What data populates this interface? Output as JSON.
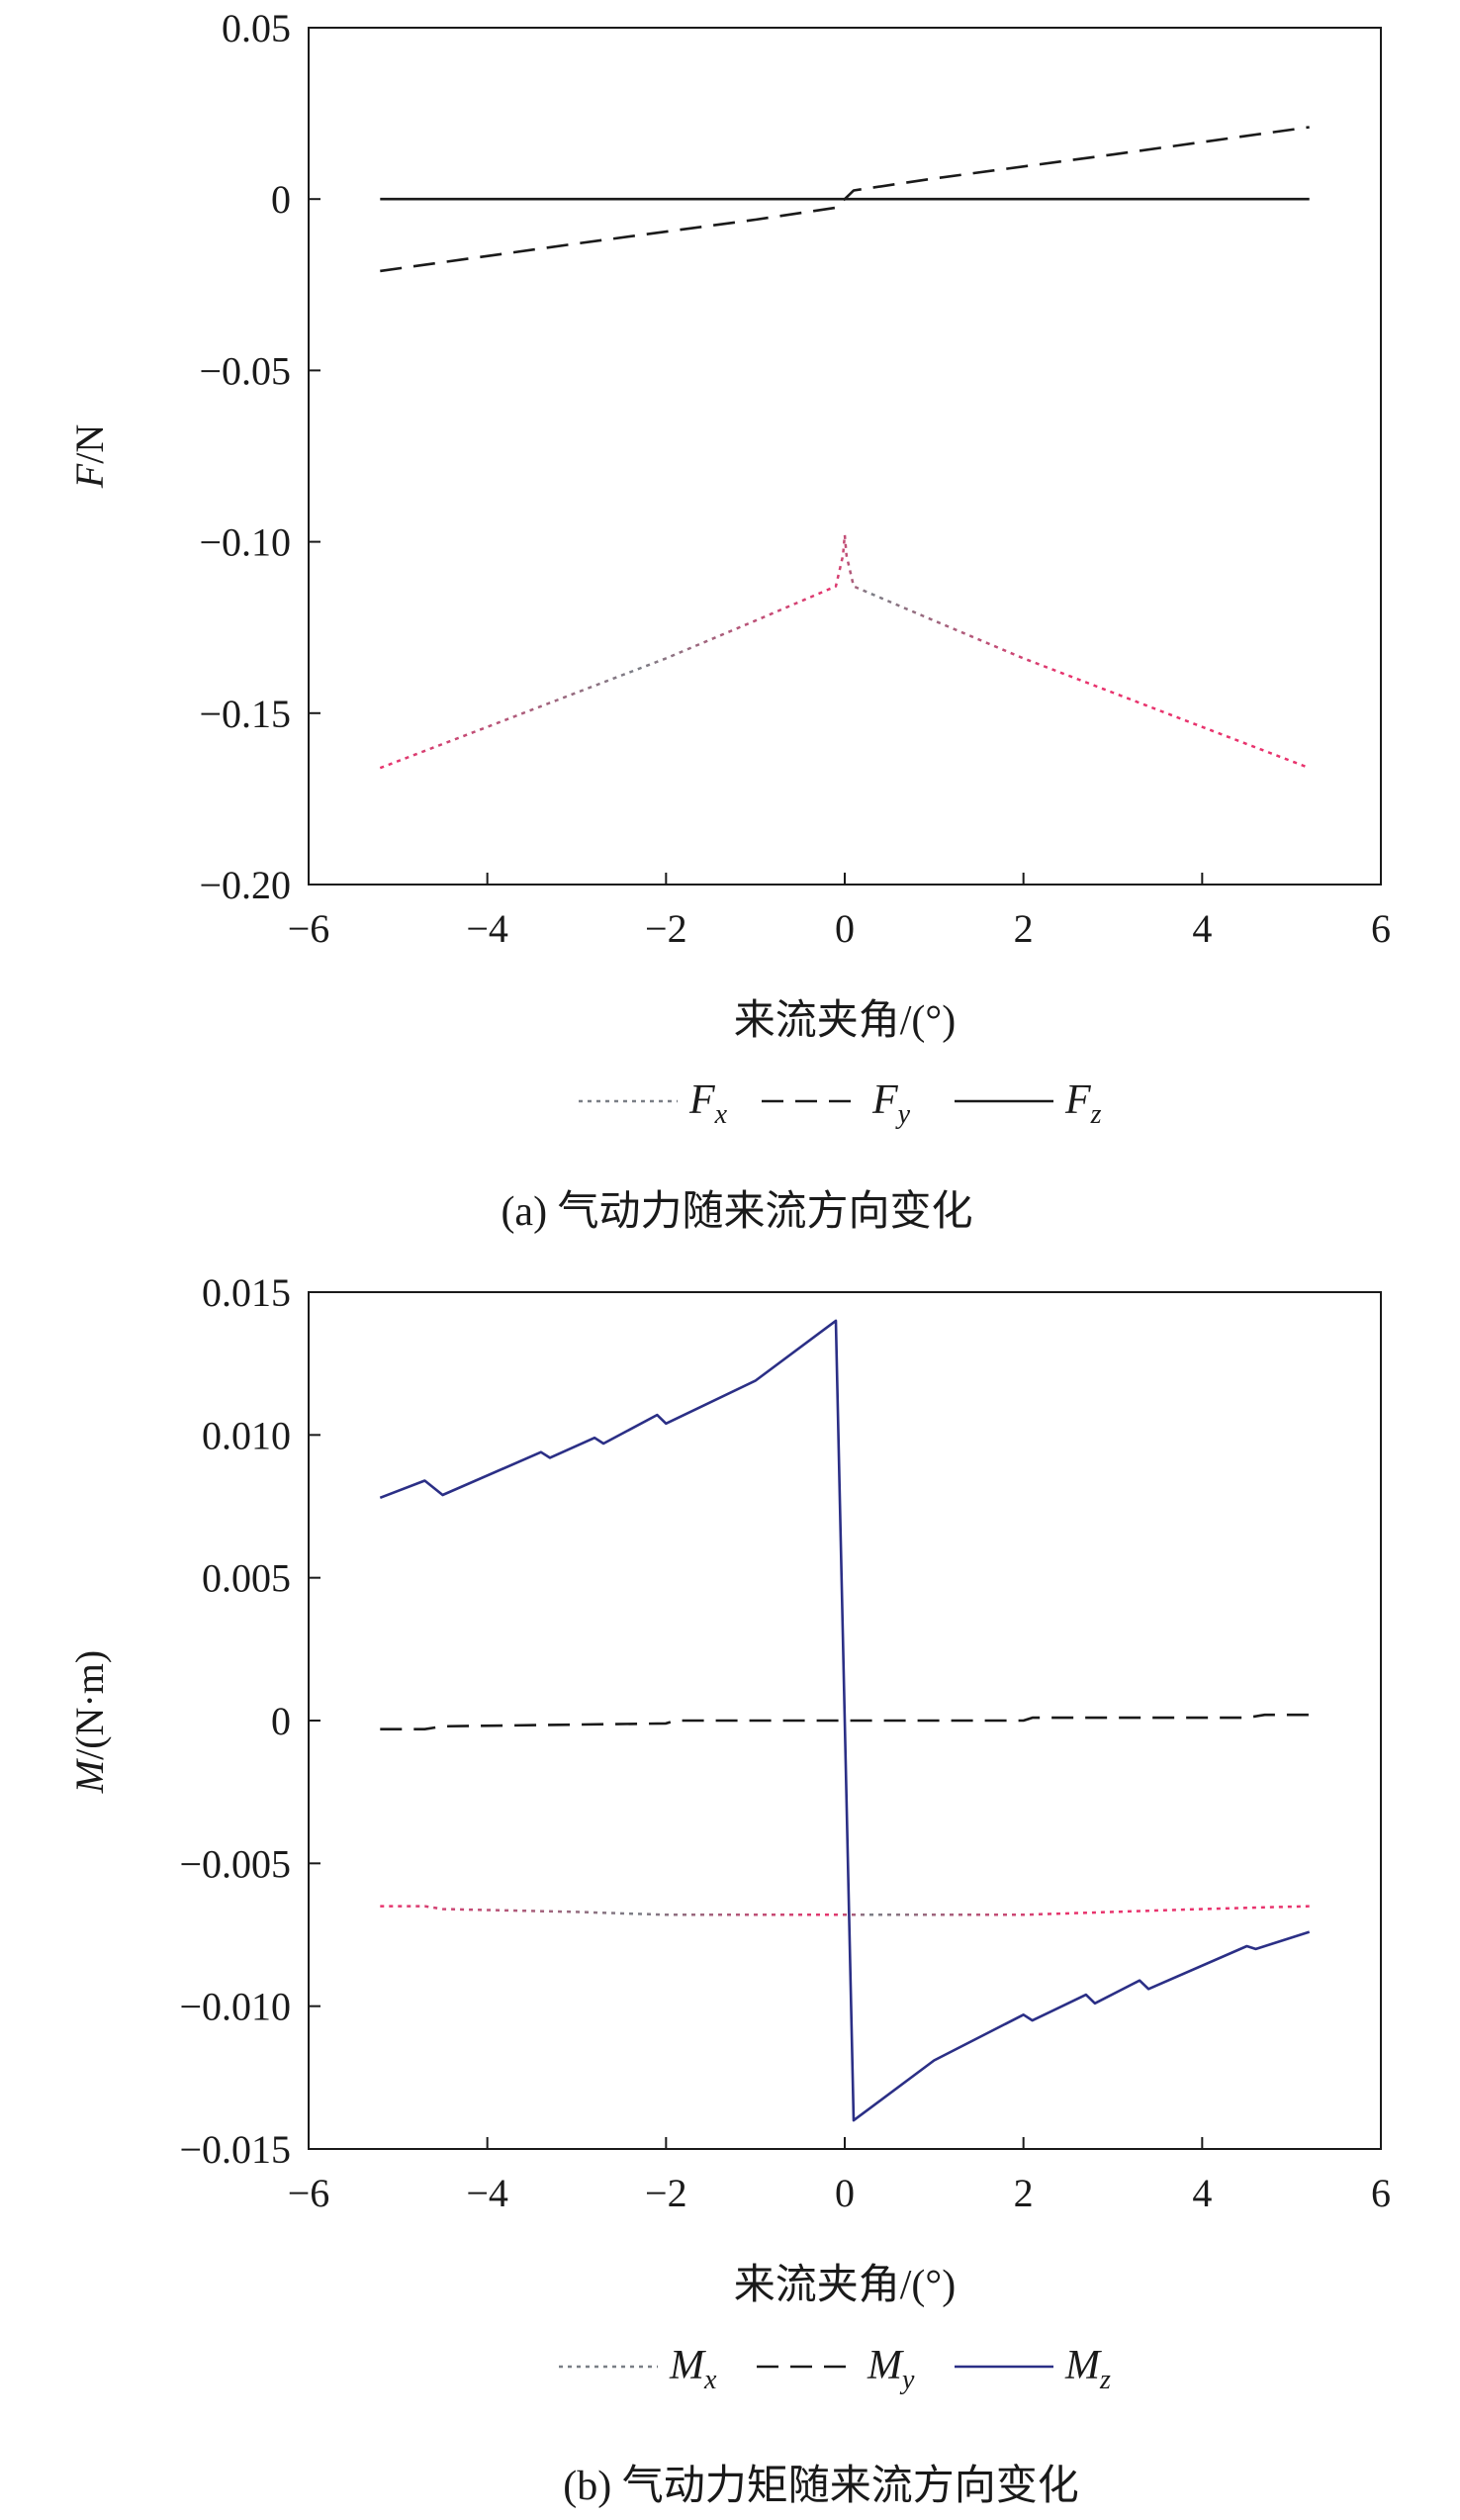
{
  "colors": {
    "axis": "#1a1a1a",
    "fx_colors": [
      "#e8336d",
      "#7a7f86"
    ],
    "fy": "#1a1a1a",
    "fz": "#1a1a1a",
    "mx_colors": [
      "#e8336d",
      "#7a7f86"
    ],
    "my": "#1a1a1a",
    "mz": "#2b2f86"
  },
  "chart_data": [
    {
      "type": "line",
      "caption": "(a) 气动力随来流方向变化",
      "xlabel": "来流夹角/(°)",
      "ylabel_italic": "F",
      "ylabel_rest": "/N",
      "xlim": [
        -6,
        6
      ],
      "ylim": [
        -0.2,
        0.05
      ],
      "xticks": [
        -6,
        -4,
        -2,
        0,
        2,
        4,
        6
      ],
      "xtick_labels": [
        "−6",
        "−4",
        "−2",
        "0",
        "2",
        "4",
        "6"
      ],
      "yticks": [
        0.05,
        0,
        -0.05,
        -0.1,
        -0.15,
        -0.2
      ],
      "ytick_labels": [
        "0.05",
        "0",
        "−0.05",
        "−0.10",
        "−0.15",
        "−0.20"
      ],
      "legend": [
        {
          "main": "F",
          "sub": "x",
          "style": "dotted"
        },
        {
          "main": "F",
          "sub": "y",
          "style": "dashed"
        },
        {
          "main": "F",
          "sub": "z",
          "style": "solid"
        }
      ],
      "series": [
        {
          "name": "Fx",
          "style": "dotted",
          "colors": [
            "#e8336d",
            "#7a7f86"
          ],
          "x": [
            -5.2,
            -4.0,
            -3.0,
            -2.0,
            -1.0,
            -0.1,
            -0.02,
            0.0,
            0.02,
            0.1,
            1.0,
            2.0,
            3.0,
            4.0,
            5.2
          ],
          "y": [
            -0.166,
            -0.154,
            -0.144,
            -0.134,
            -0.123,
            -0.113,
            -0.104,
            -0.098,
            -0.104,
            -0.113,
            -0.123,
            -0.134,
            -0.144,
            -0.154,
            -0.166
          ]
        },
        {
          "name": "Fy",
          "style": "dashed",
          "colors": [
            "#1a1a1a"
          ],
          "x": [
            -5.2,
            -3.0,
            -1.0,
            -0.1,
            0.0,
            0.1,
            1.0,
            3.0,
            5.2
          ],
          "y": [
            -0.021,
            -0.013,
            -0.006,
            -0.0025,
            0.0,
            0.0025,
            0.006,
            0.013,
            0.021
          ]
        },
        {
          "name": "Fz",
          "style": "solid",
          "colors": [
            "#1a1a1a"
          ],
          "x": [
            -5.2,
            5.2
          ],
          "y": [
            0.0,
            0.0
          ]
        }
      ]
    },
    {
      "type": "line",
      "caption": "(b) 气动力矩随来流方向变化",
      "xlabel": "来流夹角/(°)",
      "ylabel_italic": "M",
      "ylabel_rest": "/(N·m)",
      "xlim": [
        -6,
        6
      ],
      "ylim": [
        -0.015,
        0.015
      ],
      "xticks": [
        -6,
        -4,
        -2,
        0,
        2,
        4,
        6
      ],
      "xtick_labels": [
        "−6",
        "−4",
        "−2",
        "0",
        "2",
        "4",
        "6"
      ],
      "yticks": [
        0.015,
        0.01,
        0.005,
        0,
        -0.005,
        -0.01,
        -0.015
      ],
      "ytick_labels": [
        "0.015",
        "0.010",
        "0.005",
        "0",
        "−0.005",
        "−0.010",
        "−0.015"
      ],
      "legend": [
        {
          "main": "M",
          "sub": "x",
          "style": "dotted"
        },
        {
          "main": "M",
          "sub": "y",
          "style": "dashed"
        },
        {
          "main": "M",
          "sub": "z",
          "style": "solid"
        }
      ],
      "series": [
        {
          "name": "Mx",
          "style": "dotted",
          "colors": [
            "#e8336d",
            "#7a7f86"
          ],
          "x": [
            -5.2,
            -4.7,
            -4.5,
            -3.0,
            -2.0,
            -1.0,
            0.0,
            1.0,
            2.0,
            3.0,
            4.0,
            5.2
          ],
          "y": [
            -0.0065,
            -0.0065,
            -0.0066,
            -0.0067,
            -0.0068,
            -0.0068,
            -0.0068,
            -0.0068,
            -0.0068,
            -0.0067,
            -0.0066,
            -0.0065
          ]
        },
        {
          "name": "My",
          "style": "dashed",
          "colors": [
            "#1a1a1a"
          ],
          "x": [
            -5.2,
            -4.7,
            -4.5,
            -2.0,
            -1.9,
            0.0,
            2.0,
            2.1,
            4.5,
            4.7,
            5.2
          ],
          "y": [
            -0.0003,
            -0.0003,
            -0.0002,
            -0.0001,
            0.0,
            0.0,
            0.0,
            0.0001,
            0.0001,
            0.0002,
            0.0002
          ]
        },
        {
          "name": "Mz",
          "style": "solid",
          "colors": [
            "#2b2f86"
          ],
          "x": [
            -5.2,
            -4.7,
            -4.5,
            -3.4,
            -3.3,
            -2.8,
            -2.7,
            -2.1,
            -2.0,
            -1.0,
            -0.1,
            0.1,
            1.0,
            2.0,
            2.1,
            2.7,
            2.8,
            3.3,
            3.4,
            4.5,
            4.6,
            5.2
          ],
          "y": [
            0.0078,
            0.0084,
            0.0079,
            0.0094,
            0.0092,
            0.0099,
            0.0097,
            0.0107,
            0.0104,
            0.0119,
            0.014,
            -0.014,
            -0.0119,
            -0.0103,
            -0.0105,
            -0.0096,
            -0.0099,
            -0.0091,
            -0.0094,
            -0.0079,
            -0.008,
            -0.0074
          ]
        }
      ]
    }
  ]
}
